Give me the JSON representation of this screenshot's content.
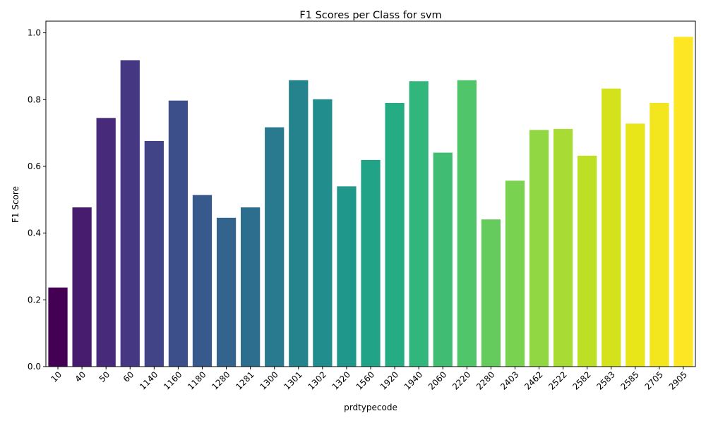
{
  "chart_data": {
    "type": "bar",
    "title": "F1 Scores per Class for svm",
    "xlabel": "prdtypecode",
    "ylabel": "F1 Score",
    "ylim": [
      0,
      1.035
    ],
    "yticks": [
      "0.0",
      "0.2",
      "0.4",
      "0.6",
      "0.8",
      "1.0"
    ],
    "categories": [
      "10",
      "40",
      "50",
      "60",
      "1140",
      "1160",
      "1180",
      "1280",
      "1281",
      "1300",
      "1301",
      "1302",
      "1320",
      "1560",
      "1920",
      "1940",
      "2060",
      "2220",
      "2280",
      "2403",
      "2462",
      "2522",
      "2582",
      "2583",
      "2585",
      "2705",
      "2905"
    ],
    "values": [
      0.237,
      0.477,
      0.745,
      0.918,
      0.676,
      0.797,
      0.514,
      0.446,
      0.477,
      0.717,
      0.858,
      0.801,
      0.54,
      0.619,
      0.79,
      0.855,
      0.641,
      0.858,
      0.441,
      0.557,
      0.709,
      0.712,
      0.632,
      0.833,
      0.728,
      0.79,
      0.988
    ],
    "colors": [
      "#440154",
      "#471c6e",
      "#482a7a",
      "#453781",
      "#414487",
      "#3c4f8a",
      "#37598c",
      "#32648e",
      "#2d6e8e",
      "#297a8e",
      "#25838e",
      "#218e8d",
      "#1f978b",
      "#20a386",
      "#25ac82",
      "#31b67b",
      "#40bd72",
      "#51c569",
      "#66cb5d",
      "#7ad251",
      "#90d743",
      "#a8db34",
      "#bddf26",
      "#d3e21b",
      "#e8e519",
      "#f4e61e",
      "#fde725"
    ],
    "grid": false,
    "legend": "none"
  }
}
